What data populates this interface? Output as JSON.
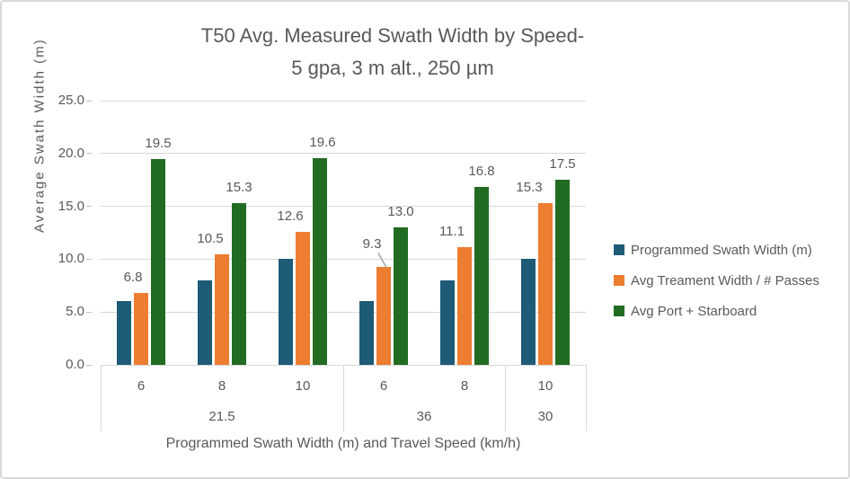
{
  "title": {
    "line1": "T50 Avg. Measured Swath Width by Speed-",
    "line2": "5 gpa, 3 m alt., 250 µm"
  },
  "chart_data": {
    "type": "bar",
    "title": "T50 Avg. Measured Swath Width by Speed- 5 gpa, 3 m alt., 250 µm",
    "ylabel": "Average Swath Width (m)",
    "xlabel": "Programmed Swath Width (m) and Travel Speed (km/h)",
    "ylim": [
      0,
      25
    ],
    "yticks": [
      0,
      5,
      10,
      15,
      20,
      25
    ],
    "ytick_labels": [
      "0.0",
      "5.0",
      "10.0",
      "15.0",
      "20.0",
      "25.0"
    ],
    "grid": true,
    "legend_position": "right",
    "categories": [
      "6",
      "8",
      "10",
      "6",
      "8",
      "10"
    ],
    "category_groups": [
      {
        "label": "21.5",
        "span": 3
      },
      {
        "label": "36",
        "span": 2
      },
      {
        "label": "30",
        "span": 1
      }
    ],
    "series": [
      {
        "name": "Programmed Swath Width (m)",
        "color": "#1D5B77",
        "values": [
          6,
          8,
          10,
          6,
          8,
          10
        ],
        "show_labels": false
      },
      {
        "name": "Avg Treament Width / # Passes",
        "color": "#ED7D31",
        "values": [
          6.8,
          10.5,
          12.6,
          9.3,
          11.1,
          15.3
        ],
        "show_labels": true,
        "labels": [
          "6.8",
          "10.5",
          "12.6",
          "9.3",
          "11.1",
          "15.3"
        ],
        "label_dx": [
          -9,
          -13,
          -14,
          -13,
          -14,
          -18
        ],
        "label_dy": [
          0,
          0,
          0,
          -8,
          0,
          0
        ],
        "leader_line_on": [
          false,
          false,
          false,
          true,
          false,
          false
        ]
      },
      {
        "name": "Avg Port + Starboard",
        "color": "#226B22",
        "values": [
          19.5,
          15.3,
          19.6,
          13.0,
          16.8,
          17.5
        ],
        "show_labels": true,
        "labels": [
          "19.5",
          "15.3",
          "19.6",
          "13.0",
          "16.8",
          "17.5"
        ],
        "label_dx": [
          0,
          0,
          3,
          0,
          0,
          0
        ],
        "label_dy": [
          0,
          0,
          0,
          0,
          0,
          0
        ],
        "leader_line_on": [
          false,
          false,
          false,
          false,
          false,
          false
        ]
      }
    ],
    "colors": {
      "text": "#595959",
      "gridline": "#D9D9D9",
      "leader_line": "#A6A6A6",
      "frame_border": "#D9D9D9",
      "background": "#FFFFFF"
    }
  }
}
